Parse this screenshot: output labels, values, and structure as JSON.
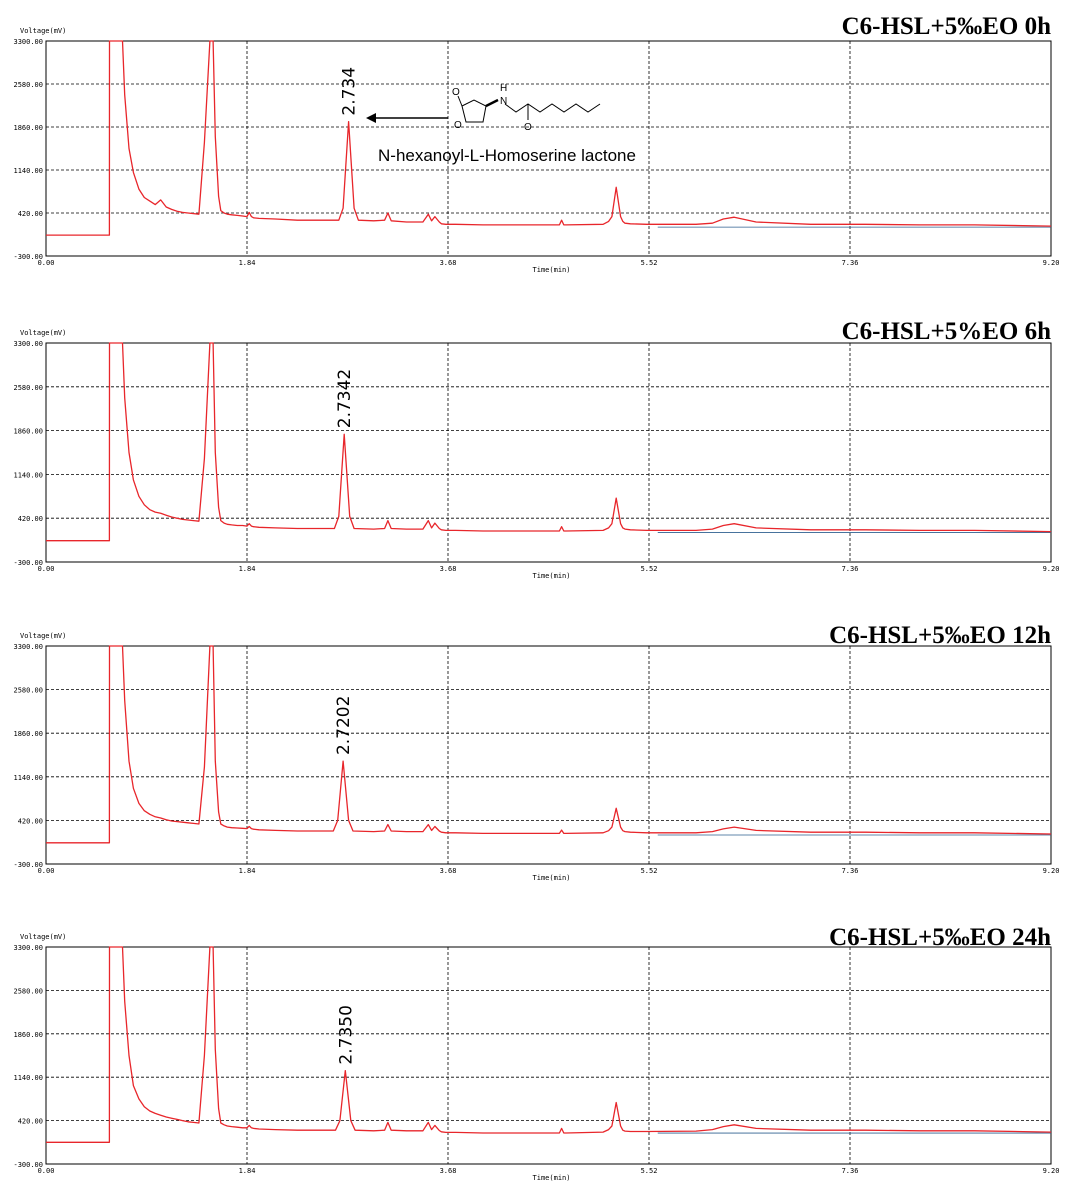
{
  "chart_data": [
    {
      "type": "line",
      "title": "C6-HSL+5‰EO 0h",
      "ylabel": "Voltage(mV)",
      "xlabel": "Time(min)",
      "xlim": [
        0,
        9.2
      ],
      "ylim": [
        -300,
        3300
      ],
      "x_ticks": [
        "0.00",
        "1.84",
        "3.68",
        "5.52",
        "7.36",
        "9.20"
      ],
      "y_ticks": [
        "3300.00",
        "2580.00",
        "1860.00",
        "1140.00",
        "420.00",
        "-300.00"
      ],
      "grid": true,
      "peak_label": "2.734",
      "peak": {
        "x": 2.77,
        "y": 1950
      },
      "structure_label": "N-hexanoyl-L-Homoserine lactone",
      "series": [
        {
          "color": "#e8262b",
          "x": [
            0,
            0.58,
            0.581,
            0.6,
            0.68,
            0.7,
            0.72,
            0.76,
            0.8,
            0.85,
            0.9,
            0.95,
            1.0,
            1.05,
            1.1,
            1.15,
            1.2,
            1.25,
            1.3,
            1.35,
            1.4,
            1.45,
            1.5,
            1.53,
            1.55,
            1.58,
            1.6,
            1.63,
            1.66,
            1.7,
            1.75,
            1.8,
            1.84,
            1.86,
            1.88,
            1.9,
            1.95,
            2.1,
            2.3,
            2.5,
            2.68,
            2.72,
            2.77,
            2.82,
            2.86,
            3.0,
            3.1,
            3.13,
            3.16,
            3.3,
            3.45,
            3.5,
            3.53,
            3.56,
            3.6,
            3.62,
            3.66,
            3.75,
            4.0,
            4.4,
            4.7,
            4.72,
            4.74,
            4.76,
            5.1,
            5.15,
            5.18,
            5.22,
            5.26,
            5.28,
            5.3,
            5.35,
            5.5,
            5.95,
            6.1,
            6.2,
            6.3,
            6.5,
            7.0,
            7.5,
            8.0,
            8.5,
            9.2
          ],
          "y": [
            50,
            50,
            3300,
            3300,
            3300,
            3300,
            2400,
            1500,
            1100,
            820,
            680,
            620,
            560,
            640,
            520,
            480,
            450,
            430,
            420,
            410,
            400,
            1600,
            3300,
            3300,
            1700,
            700,
            460,
            420,
            400,
            390,
            380,
            370,
            360,
            430,
            360,
            340,
            330,
            320,
            300,
            300,
            300,
            500,
            1950,
            500,
            300,
            290,
            300,
            420,
            290,
            270,
            270,
            400,
            290,
            360,
            270,
            240,
            230,
            230,
            220,
            220,
            220,
            300,
            220,
            220,
            230,
            280,
            360,
            850,
            360,
            280,
            250,
            240,
            230,
            230,
            250,
            320,
            350,
            270,
            230,
            230,
            220,
            220,
            200
          ]
        }
      ]
    },
    {
      "type": "line",
      "title": "C6-HSL+5%EO 6h",
      "ylabel": "Voltage(mV)",
      "xlabel": "Time(min)",
      "xlim": [
        0,
        9.2
      ],
      "ylim": [
        -300,
        3300
      ],
      "x_ticks": [
        "0.00",
        "1.84",
        "3.68",
        "5.52",
        "7.36",
        "9.20"
      ],
      "y_ticks": [
        "3300.00",
        "2580.00",
        "1860.00",
        "1140.00",
        "420.00",
        "-300.00"
      ],
      "grid": true,
      "peak_label": "2.7342",
      "peak": {
        "x": 2.73,
        "y": 1800
      },
      "series": [
        {
          "color": "#e8262b",
          "x": [
            0,
            0.58,
            0.581,
            0.6,
            0.68,
            0.7,
            0.72,
            0.76,
            0.8,
            0.85,
            0.9,
            0.95,
            1.0,
            1.05,
            1.1,
            1.15,
            1.2,
            1.25,
            1.3,
            1.35,
            1.4,
            1.45,
            1.5,
            1.53,
            1.55,
            1.58,
            1.6,
            1.63,
            1.66,
            1.7,
            1.75,
            1.8,
            1.84,
            1.86,
            1.88,
            1.9,
            1.95,
            2.1,
            2.3,
            2.5,
            2.64,
            2.68,
            2.73,
            2.78,
            2.82,
            3.0,
            3.1,
            3.13,
            3.16,
            3.3,
            3.45,
            3.5,
            3.53,
            3.56,
            3.6,
            3.62,
            3.66,
            3.75,
            4.0,
            4.4,
            4.7,
            4.72,
            4.74,
            4.76,
            5.1,
            5.15,
            5.18,
            5.22,
            5.26,
            5.28,
            5.3,
            5.35,
            5.5,
            5.95,
            6.1,
            6.2,
            6.3,
            6.5,
            7.0,
            7.5,
            8.0,
            8.5,
            9.2
          ],
          "y": [
            50,
            50,
            3300,
            3300,
            3300,
            3300,
            2400,
            1500,
            1050,
            780,
            640,
            560,
            520,
            500,
            470,
            440,
            420,
            400,
            390,
            380,
            370,
            1400,
            3300,
            3300,
            1500,
            600,
            380,
            340,
            320,
            310,
            300,
            300,
            290,
            330,
            290,
            280,
            270,
            260,
            250,
            250,
            250,
            450,
            1800,
            450,
            250,
            240,
            250,
            380,
            250,
            240,
            240,
            380,
            260,
            340,
            250,
            230,
            220,
            220,
            210,
            210,
            210,
            280,
            210,
            210,
            220,
            260,
            330,
            750,
            330,
            260,
            240,
            230,
            220,
            220,
            240,
            300,
            330,
            260,
            230,
            230,
            220,
            220,
            200
          ]
        }
      ]
    },
    {
      "type": "line",
      "title": "C6-HSL+5‰EO 12h",
      "ylabel": "Voltage(mV)",
      "xlabel": "Time(min)",
      "xlim": [
        0,
        9.2
      ],
      "ylim": [
        -300,
        3300
      ],
      "x_ticks": [
        "0.00",
        "1.84",
        "3.68",
        "5.52",
        "7.36",
        "9.20"
      ],
      "y_ticks": [
        "3300.00",
        "2580.00",
        "1860.00",
        "1140.00",
        "420.00",
        "-300.00"
      ],
      "grid": true,
      "peak_label": "2.7202",
      "peak": {
        "x": 2.72,
        "y": 1400
      },
      "series": [
        {
          "color": "#e8262b",
          "x": [
            0,
            0.58,
            0.581,
            0.6,
            0.68,
            0.7,
            0.72,
            0.76,
            0.8,
            0.85,
            0.9,
            0.95,
            1.0,
            1.05,
            1.1,
            1.15,
            1.2,
            1.25,
            1.3,
            1.35,
            1.4,
            1.45,
            1.5,
            1.53,
            1.55,
            1.58,
            1.6,
            1.63,
            1.66,
            1.7,
            1.75,
            1.8,
            1.84,
            1.86,
            1.88,
            1.9,
            1.95,
            2.1,
            2.3,
            2.5,
            2.63,
            2.67,
            2.72,
            2.77,
            2.81,
            3.0,
            3.1,
            3.13,
            3.16,
            3.3,
            3.45,
            3.5,
            3.53,
            3.56,
            3.6,
            3.62,
            3.66,
            3.75,
            4.0,
            4.4,
            4.7,
            4.72,
            4.74,
            4.76,
            5.1,
            5.15,
            5.18,
            5.22,
            5.26,
            5.28,
            5.3,
            5.35,
            5.5,
            5.95,
            6.1,
            6.2,
            6.3,
            6.5,
            7.0,
            7.5,
            8.0,
            8.5,
            9.2
          ],
          "y": [
            50,
            50,
            3300,
            3300,
            3300,
            3300,
            2400,
            1400,
            950,
            700,
            580,
            520,
            480,
            460,
            430,
            410,
            400,
            390,
            380,
            370,
            360,
            1300,
            3300,
            3300,
            1400,
            560,
            360,
            330,
            310,
            300,
            295,
            290,
            285,
            320,
            285,
            275,
            265,
            255,
            245,
            245,
            245,
            420,
            1400,
            420,
            245,
            235,
            245,
            350,
            245,
            235,
            235,
            350,
            255,
            320,
            245,
            225,
            215,
            215,
            205,
            205,
            205,
            260,
            205,
            205,
            215,
            250,
            310,
            620,
            310,
            250,
            235,
            225,
            215,
            215,
            235,
            280,
            310,
            255,
            225,
            225,
            215,
            215,
            195
          ]
        }
      ]
    },
    {
      "type": "line",
      "title": "C6-HSL+5‰EO 24h",
      "ylabel": "Voltage(mV)",
      "xlabel": "Time(min)",
      "xlim": [
        0,
        9.2
      ],
      "ylim": [
        -300,
        3300
      ],
      "x_ticks": [
        "0.00",
        "1.84",
        "3.68",
        "5.52",
        "7.36",
        "9.20"
      ],
      "y_ticks": [
        "3300.00",
        "2580.00",
        "1860.00",
        "1140.00",
        "420.00",
        "-300.00"
      ],
      "grid": true,
      "peak_label": "2.7350",
      "peak": {
        "x": 2.74,
        "y": 1250
      },
      "series": [
        {
          "color": "#e8262b",
          "x": [
            0,
            0.58,
            0.581,
            0.6,
            0.68,
            0.7,
            0.72,
            0.76,
            0.8,
            0.85,
            0.9,
            0.95,
            1.0,
            1.05,
            1.1,
            1.15,
            1.2,
            1.25,
            1.3,
            1.35,
            1.4,
            1.45,
            1.5,
            1.53,
            1.55,
            1.58,
            1.6,
            1.63,
            1.66,
            1.7,
            1.75,
            1.8,
            1.84,
            1.86,
            1.88,
            1.9,
            1.95,
            2.1,
            2.3,
            2.5,
            2.65,
            2.69,
            2.74,
            2.79,
            2.83,
            3.0,
            3.1,
            3.13,
            3.16,
            3.3,
            3.45,
            3.5,
            3.53,
            3.56,
            3.6,
            3.62,
            3.66,
            3.75,
            4.0,
            4.4,
            4.7,
            4.72,
            4.74,
            4.76,
            5.1,
            5.15,
            5.18,
            5.22,
            5.26,
            5.28,
            5.3,
            5.35,
            5.5,
            5.95,
            6.1,
            6.2,
            6.3,
            6.5,
            7.0,
            7.5,
            8.0,
            8.5,
            9.2
          ],
          "y": [
            60,
            60,
            3300,
            3300,
            3300,
            3300,
            2400,
            1500,
            1000,
            780,
            650,
            580,
            540,
            510,
            480,
            460,
            440,
            420,
            400,
            390,
            380,
            1500,
            3300,
            3300,
            1600,
            620,
            380,
            350,
            330,
            320,
            310,
            300,
            300,
            340,
            300,
            290,
            280,
            270,
            260,
            260,
            260,
            420,
            1250,
            420,
            260,
            250,
            260,
            390,
            260,
            250,
            250,
            390,
            270,
            340,
            255,
            235,
            225,
            225,
            215,
            215,
            215,
            290,
            215,
            215,
            230,
            270,
            330,
            720,
            330,
            260,
            245,
            240,
            240,
            245,
            270,
            320,
            350,
            290,
            260,
            260,
            250,
            250,
            230
          ]
        }
      ]
    }
  ]
}
